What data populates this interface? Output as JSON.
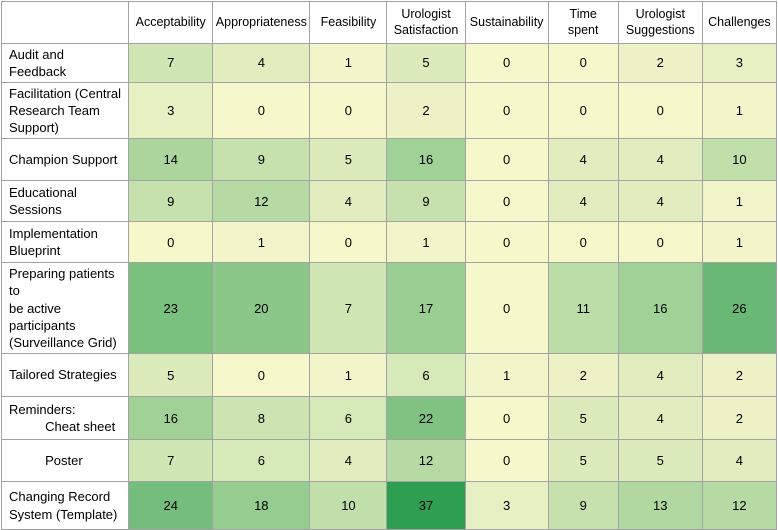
{
  "heatmap": {
    "corner_label": "",
    "columns": [
      {
        "label": "Acceptability"
      },
      {
        "label": "Appropriateness"
      },
      {
        "label": "Feasibility"
      },
      {
        "label": "Urologist\nSatisfaction"
      },
      {
        "label": "Sustainability"
      },
      {
        "label": "Time\nspent"
      },
      {
        "label": "Urologist\nSuggestions"
      },
      {
        "label": "Challenges"
      }
    ],
    "rows": [
      {
        "label": "Audit and Feedback",
        "values": [
          7,
          4,
          1,
          5,
          0,
          0,
          2,
          3
        ]
      },
      {
        "label": "Facilitation (Central\nResearch Team\nSupport)",
        "values": [
          3,
          0,
          0,
          2,
          0,
          0,
          0,
          1
        ]
      },
      {
        "label": "Champion Support",
        "values": [
          14,
          9,
          5,
          16,
          0,
          4,
          4,
          10
        ]
      },
      {
        "label": "Educational Sessions",
        "values": [
          9,
          12,
          4,
          9,
          0,
          4,
          4,
          1
        ]
      },
      {
        "label": "Implementation\nBlueprint",
        "values": [
          0,
          1,
          0,
          1,
          0,
          0,
          0,
          1
        ]
      },
      {
        "label": "Preparing patients to\nbe active participants\n(Surveillance Grid)",
        "values": [
          23,
          20,
          7,
          17,
          0,
          11,
          16,
          26
        ]
      },
      {
        "label": "Tailored Strategies",
        "values": [
          5,
          0,
          1,
          6,
          1,
          2,
          4,
          2
        ]
      },
      {
        "label": "Reminders:\n          Cheat sheet",
        "values": [
          16,
          8,
          6,
          22,
          0,
          5,
          4,
          2
        ]
      },
      {
        "label": "          Poster",
        "values": [
          7,
          6,
          4,
          12,
          0,
          5,
          5,
          4
        ]
      },
      {
        "label": "Changing Record\nSystem (Template)",
        "values": [
          24,
          18,
          10,
          37,
          3,
          9,
          13,
          12
        ]
      }
    ],
    "colors": {
      "min_color": "#f7f7cc",
      "max_color": "#2e9e50",
      "scale_min": 0,
      "scale_max": 37,
      "border": "#a3a3a3",
      "header_bg": "#ffffff",
      "text": "#000000"
    }
  },
  "chart_data": {
    "type": "heatmap",
    "columns": [
      "Acceptability",
      "Appropriateness",
      "Feasibility",
      "Urologist Satisfaction",
      "Sustainability",
      "Time spent",
      "Urologist Suggestions",
      "Challenges"
    ],
    "rows": [
      "Audit and Feedback",
      "Facilitation (Central Research Team Support)",
      "Champion Support",
      "Educational Sessions",
      "Implementation Blueprint",
      "Preparing patients to be active participants (Surveillance Grid)",
      "Tailored Strategies",
      "Reminders: Cheat sheet",
      "Poster",
      "Changing Record System (Template)"
    ],
    "values": [
      [
        7,
        4,
        1,
        5,
        0,
        0,
        2,
        3
      ],
      [
        3,
        0,
        0,
        2,
        0,
        0,
        0,
        1
      ],
      [
        14,
        9,
        5,
        16,
        0,
        4,
        4,
        10
      ],
      [
        9,
        12,
        4,
        9,
        0,
        4,
        4,
        1
      ],
      [
        0,
        1,
        0,
        1,
        0,
        0,
        0,
        1
      ],
      [
        23,
        20,
        7,
        17,
        0,
        11,
        16,
        26
      ],
      [
        5,
        0,
        1,
        6,
        1,
        2,
        4,
        2
      ],
      [
        16,
        8,
        6,
        22,
        0,
        5,
        4,
        2
      ],
      [
        7,
        6,
        4,
        12,
        0,
        5,
        5,
        4
      ],
      [
        24,
        18,
        10,
        37,
        3,
        9,
        13,
        12
      ]
    ],
    "color_scale": {
      "min_value": 0,
      "max_value": 37,
      "min_color": "#f7f7cc",
      "max_color": "#2e9e50"
    },
    "legend": "none",
    "grid": true
  }
}
